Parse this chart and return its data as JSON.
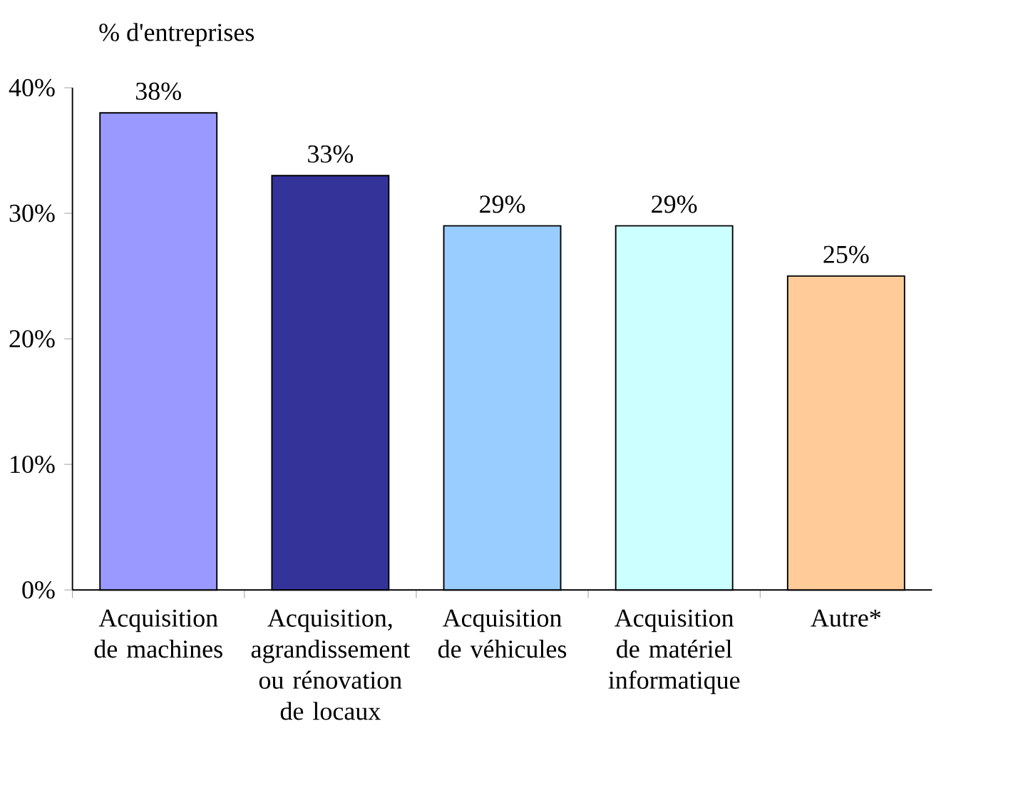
{
  "chart_data": {
    "type": "bar",
    "ylabel": "% d'entreprises",
    "categories": [
      "Acquisition de machines",
      "Acquisition, agrandissement ou rénovation de locaux",
      "Acquisition de véhicules",
      "Acquisition de matériel informatique",
      "Autre*"
    ],
    "values": [
      38,
      33,
      29,
      29,
      25
    ],
    "colors": [
      "#9999ff",
      "#333399",
      "#99ccff",
      "#ccffff",
      "#ffcc99"
    ],
    "value_labels": [
      "38%",
      "33%",
      "29%",
      "29%",
      "25%"
    ],
    "ylim": [
      0,
      40
    ],
    "yticks": [
      {
        "value": 0,
        "label": "0%"
      },
      {
        "value": 10,
        "label": "10%"
      },
      {
        "value": 20,
        "label": "20%"
      },
      {
        "value": 30,
        "label": "30%"
      },
      {
        "value": 40,
        "label": "40%"
      }
    ],
    "grid": false
  }
}
